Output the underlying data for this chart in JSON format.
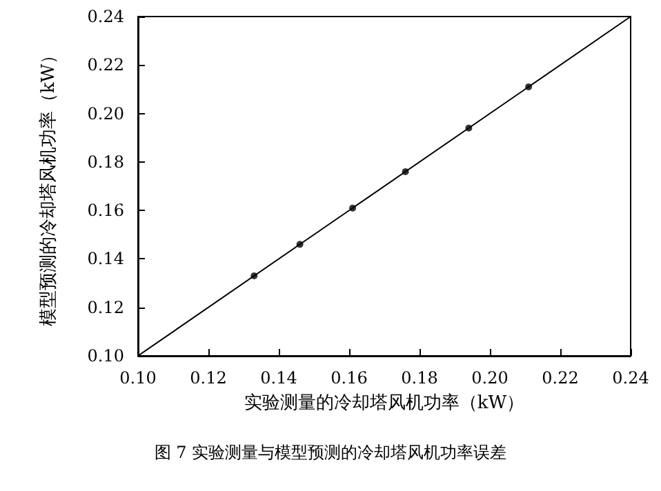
{
  "chart_data": {
    "type": "scatter",
    "xlabel": "实验测量的冷却塔风机功率（kW）",
    "ylabel": "模型预测的冷却塔风机功率（kW）",
    "annotations": [
      "图 7 实验测量与模型预测的冷却塔风机功率误差"
    ],
    "series": [
      {
        "color": "#000000",
        "marker": "circle",
        "x": [
          0.133,
          0.146,
          0.161,
          0.176,
          0.194,
          0.211
        ],
        "values": [
          0.133,
          0.146,
          0.161,
          0.176,
          0.194,
          0.211
        ]
      },
      {
        "type": "line",
        "color": "#000000",
        "marker": "none",
        "x": [
          0.1,
          0.24
        ],
        "values": [
          0.1,
          0.24
        ]
      }
    ],
    "xlim": [
      0.1,
      0.24
    ],
    "ylim": [
      0.1,
      0.24
    ],
    "xticks": [
      {
        "value": 0.1,
        "label": "0.10"
      },
      {
        "value": 0.12,
        "label": "0.12"
      },
      {
        "value": 0.14,
        "label": "0.14"
      },
      {
        "value": 0.16,
        "label": "0.16"
      },
      {
        "value": 0.18,
        "label": "0.18"
      },
      {
        "value": 0.2,
        "label": "0.20"
      },
      {
        "value": 0.22,
        "label": "0.22"
      },
      {
        "value": 0.24,
        "label": "0.24"
      }
    ],
    "yticks": [
      {
        "value": 0.1,
        "label": "0.10"
      },
      {
        "value": 0.12,
        "label": "0.12"
      },
      {
        "value": 0.14,
        "label": "0.14"
      },
      {
        "value": 0.16,
        "label": "0.16"
      },
      {
        "value": 0.18,
        "label": "0.18"
      },
      {
        "value": 0.2,
        "label": "0.20"
      },
      {
        "value": 0.22,
        "label": "0.22"
      },
      {
        "value": 0.24,
        "label": "0.24"
      }
    ],
    "grid": false
  }
}
